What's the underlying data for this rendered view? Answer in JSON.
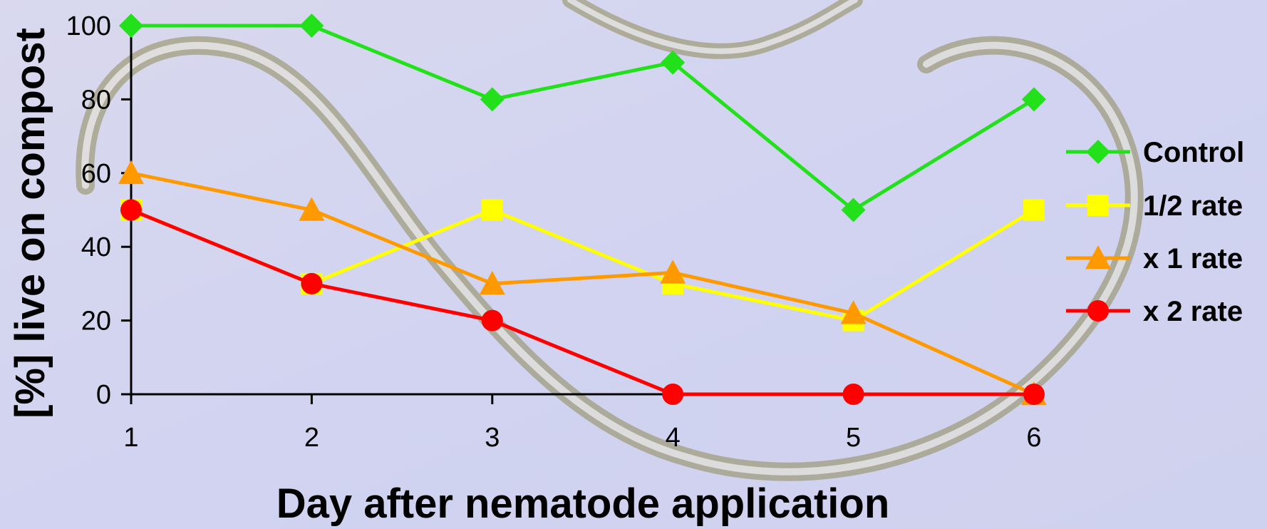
{
  "chart_data": {
    "type": "line",
    "title": "",
    "xlabel": "Day after nematode application",
    "ylabel": "[%] live on compost",
    "x": [
      1,
      2,
      3,
      4,
      5,
      6
    ],
    "x_tick_labels": [
      "1",
      "2",
      "3",
      "4",
      "5",
      "6"
    ],
    "y_tick_labels": [
      "0",
      "20",
      "40",
      "60",
      "80",
      "100"
    ],
    "ylim": [
      0,
      100
    ],
    "grid": false,
    "legend_position": "right",
    "series": [
      {
        "name": "Control",
        "values": [
          100,
          100,
          80,
          90,
          50,
          80
        ],
        "color": "#22e11b",
        "marker": "diamond"
      },
      {
        "name": "1/2 rate",
        "values": [
          50,
          30,
          50,
          30,
          20,
          50
        ],
        "color": "#ffff00",
        "marker": "square"
      },
      {
        "name": "x 1 rate",
        "values": [
          60,
          50,
          30,
          33,
          22,
          0
        ],
        "color": "#ff9900",
        "marker": "triangle"
      },
      {
        "name": "x 2 rate",
        "values": [
          50,
          30,
          20,
          0,
          0,
          0
        ],
        "color": "#ff0000",
        "marker": "circle"
      }
    ]
  }
}
